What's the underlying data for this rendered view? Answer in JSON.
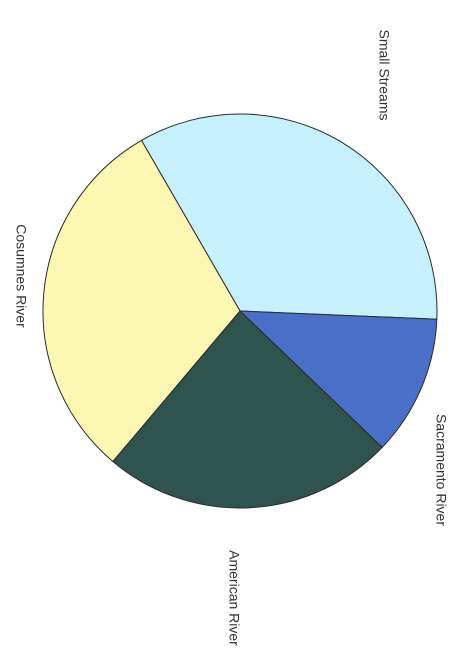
{
  "chart_data": {
    "type": "pie",
    "title": "",
    "rotation": "page rotated 90 degrees clockwise",
    "slices": [
      {
        "label": "Small Streams",
        "value": 34.0,
        "color": "#c6f0fb"
      },
      {
        "label": "Sacramento River",
        "value": 11.5,
        "color": "#4a6fc9"
      },
      {
        "label": "American River",
        "value": 24.0,
        "color": "#2f5450"
      },
      {
        "label": "Cosumnes River",
        "value": 30.5,
        "color": "#fcf8b4"
      }
    ],
    "legend": "labels placed beside slices"
  }
}
